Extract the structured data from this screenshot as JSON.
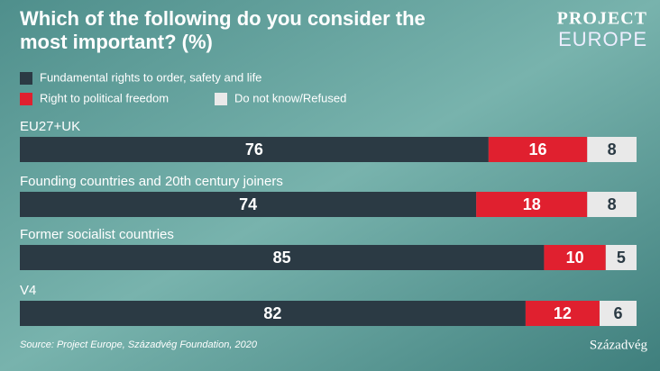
{
  "chart_data": {
    "type": "stacked-bar-horizontal",
    "title": [
      "Which of the following do you consider the",
      "most important? (%)"
    ],
    "logo": [
      "PROJECT",
      "EUROPE"
    ],
    "publisher": "Századvég",
    "source": "Source: Project Europe, Századvég Foundation, 2020",
    "categories": [
      "EU27+UK",
      "Founding countries and 20th century joiners",
      "Former socialist countries",
      "V4"
    ],
    "series": [
      {
        "name": "Fundamental rights to order, safety and life",
        "color": "#2b3a44",
        "label_color": "#ffffff",
        "values": [
          76,
          74,
          85,
          82
        ]
      },
      {
        "name": "Right to political freedom",
        "color": "#e0202f",
        "label_color": "#ffffff",
        "values": [
          16,
          18,
          10,
          12
        ]
      },
      {
        "name": "Do not know/Refused",
        "color": "#e9e9e9",
        "label_color": "#2b3a44",
        "values": [
          8,
          8,
          5,
          6
        ]
      }
    ],
    "xlim": [
      0,
      100
    ]
  }
}
